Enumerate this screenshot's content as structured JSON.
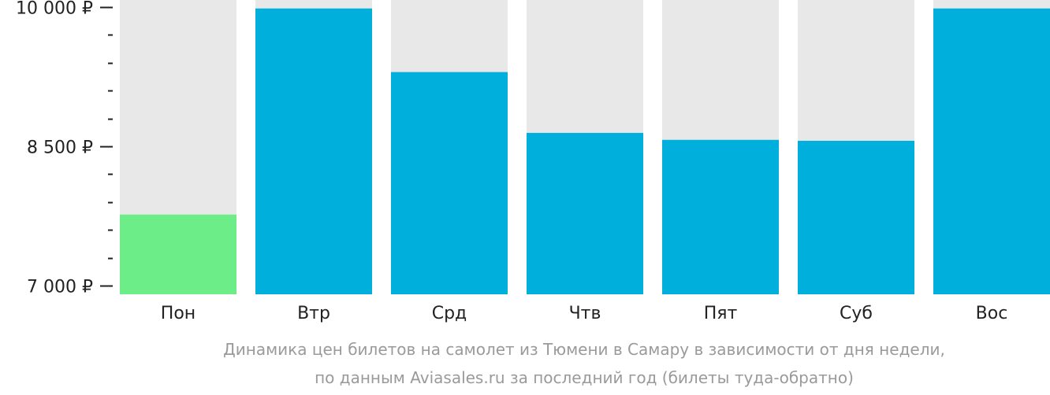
{
  "chart_data": {
    "type": "bar",
    "categories": [
      "Пон",
      "Втр",
      "Срд",
      "Чтв",
      "Пят",
      "Суб",
      "Вос"
    ],
    "values": [
      7765,
      9985,
      9300,
      8645,
      8570,
      8560,
      9985
    ],
    "ylim": [
      7000,
      10000
    ],
    "y_ticks": [
      {
        "value": 7000,
        "label": "7 000 ₽"
      },
      {
        "value": 8500,
        "label": "8 500 ₽"
      },
      {
        "value": 10000,
        "label": "10 000 ₽"
      }
    ],
    "y_minor_step": 300,
    "highlight_index": 0,
    "colors": {
      "bar": "#00afdb",
      "highlight": "#6ded87",
      "background_column": "#e8e8e8",
      "axis": "#222222",
      "caption": "#9a9a9a"
    },
    "grid": false,
    "legend": "none"
  },
  "caption": {
    "line1": "Динамика цен билетов на самолет из Тюмени в Самару в зависимости от дня недели,",
    "line2": "по данным Aviasales.ru за последний год (билеты туда-обратно)"
  }
}
